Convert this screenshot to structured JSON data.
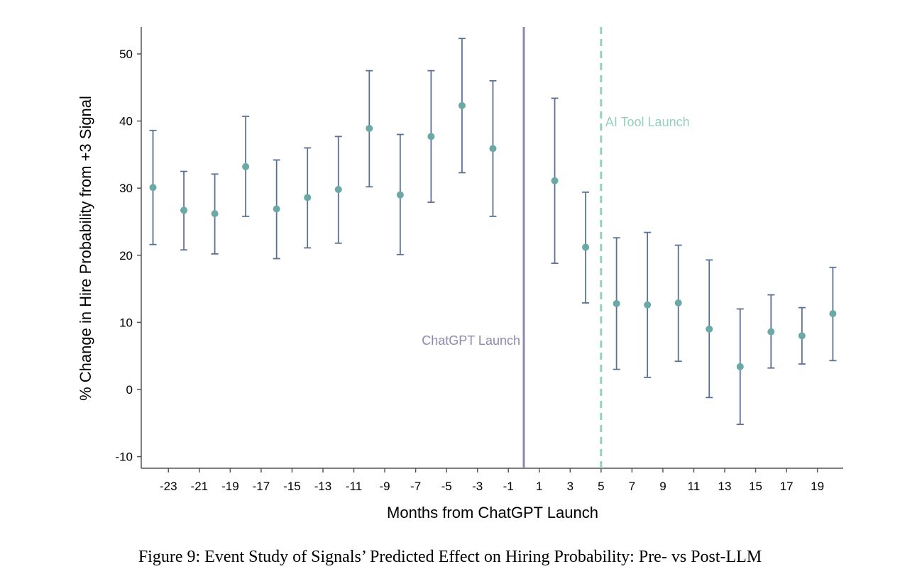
{
  "caption": "Figure 9: Event Study of Signals’ Predicted Effect on Hiring Probability: Pre- vs Post-LLM",
  "chart_data": {
    "type": "scatter",
    "subtype": "event-study point estimates with confidence-interval error bars",
    "xlabel": "Months from ChatGPT Launch",
    "ylabel": "% Change in Hire Probability from +3 Signal",
    "xlim": [
      -25,
      21
    ],
    "ylim": [
      -12,
      54
    ],
    "xticks": [
      -23,
      -21,
      -19,
      -17,
      -15,
      -13,
      -11,
      -9,
      -7,
      -5,
      -3,
      -1,
      1,
      3,
      5,
      7,
      9,
      11,
      13,
      15,
      17,
      19
    ],
    "yticks": [
      -10,
      0,
      10,
      20,
      30,
      40,
      50
    ],
    "grid": false,
    "colors": {
      "point": "#6aa9a5",
      "errorbar": "#5b7194",
      "chatgpt_line": "#8e88b0",
      "ai_tool_line": "#92d1bb",
      "axis": "#555555"
    },
    "points": [
      {
        "x": -24,
        "y": 30.1,
        "lo": 21.6,
        "hi": 38.6
      },
      {
        "x": -22,
        "y": 26.7,
        "lo": 20.8,
        "hi": 32.5
      },
      {
        "x": -20,
        "y": 26.2,
        "lo": 20.2,
        "hi": 32.1
      },
      {
        "x": -18,
        "y": 33.2,
        "lo": 25.8,
        "hi": 40.7
      },
      {
        "x": -16,
        "y": 26.9,
        "lo": 19.5,
        "hi": 34.2
      },
      {
        "x": -14,
        "y": 28.6,
        "lo": 21.1,
        "hi": 36.0
      },
      {
        "x": -12,
        "y": 29.8,
        "lo": 21.8,
        "hi": 37.7
      },
      {
        "x": -10,
        "y": 38.9,
        "lo": 30.2,
        "hi": 47.5
      },
      {
        "x": -8,
        "y": 29.0,
        "lo": 20.1,
        "hi": 38.0
      },
      {
        "x": -6,
        "y": 37.7,
        "lo": 27.9,
        "hi": 47.5
      },
      {
        "x": -4,
        "y": 42.3,
        "lo": 32.3,
        "hi": 52.3
      },
      {
        "x": -2,
        "y": 35.9,
        "lo": 25.8,
        "hi": 46.0
      },
      {
        "x": 2,
        "y": 31.1,
        "lo": 18.8,
        "hi": 43.4
      },
      {
        "x": 4,
        "y": 21.2,
        "lo": 12.9,
        "hi": 29.4
      },
      {
        "x": 6,
        "y": 12.8,
        "lo": 3.0,
        "hi": 22.6
      },
      {
        "x": 8,
        "y": 12.6,
        "lo": 1.8,
        "hi": 23.4
      },
      {
        "x": 10,
        "y": 12.9,
        "lo": 4.2,
        "hi": 21.5
      },
      {
        "x": 12,
        "y": 9.0,
        "lo": -1.2,
        "hi": 19.3
      },
      {
        "x": 14,
        "y": 3.4,
        "lo": -5.2,
        "hi": 12.0
      },
      {
        "x": 16,
        "y": 8.6,
        "lo": 3.2,
        "hi": 14.1
      },
      {
        "x": 18,
        "y": 8.0,
        "lo": 3.8,
        "hi": 12.2
      },
      {
        "x": 20,
        "y": 11.3,
        "lo": 4.3,
        "hi": 18.2
      }
    ],
    "annotations": [
      {
        "label": "ChatGPT Launch",
        "x": 0,
        "style": "solid"
      },
      {
        "label": "AI Tool Launch",
        "x": 5,
        "style": "dashed"
      }
    ]
  }
}
